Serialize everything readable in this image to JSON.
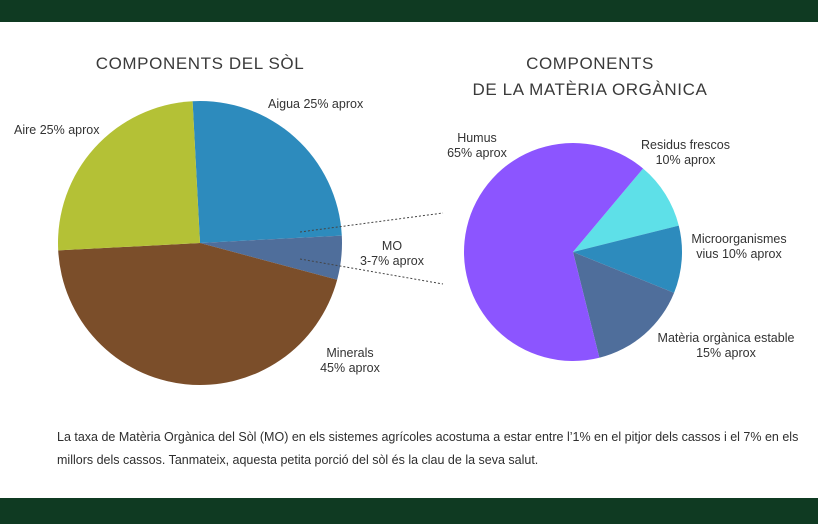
{
  "chart_data": [
    {
      "type": "pie",
      "title": "COMPONENTS DEL SÒL",
      "slices": [
        {
          "name": "Aigua",
          "label": "Aigua 25% aprox",
          "value": 25,
          "color": "#2d8bbd"
        },
        {
          "name": "MO",
          "label": "MO\n3-7% aprox",
          "value": 5,
          "color": "#4f6e9b"
        },
        {
          "name": "Minerals",
          "label": "Minerals\n45% aprox",
          "value": 45,
          "color": "#7b4e2a"
        },
        {
          "name": "Aire",
          "label": "Aire 25% aprox",
          "value": 25,
          "color": "#b4c136"
        }
      ]
    },
    {
      "type": "pie",
      "title": "COMPONENTS\nDE LA MATÈRIA ORGÀNICA",
      "slices": [
        {
          "name": "Residus frescos",
          "label": "Residus frescos\n10% aprox",
          "value": 10,
          "color": "#5ee0e8"
        },
        {
          "name": "Microorganismes vius",
          "label": "Microorganismes\nvius 10% aprox",
          "value": 10,
          "color": "#2d8bbd"
        },
        {
          "name": "Matèria orgànica estable",
          "label": "Matèria orgànica estable\n15% aprox",
          "value": 15,
          "color": "#4f6e9b"
        },
        {
          "name": "Humus",
          "label": "Humus\n65% aprox",
          "value": 65,
          "color": "#8c55ff"
        }
      ]
    }
  ],
  "caption": "La taxa de Matèria Orgànica del Sòl (MO) en els sistemes agrícoles acostuma a estar entre l’1% en el pitjor dels cassos i el 7% en els millors dels cassos. Tanmateix, aquesta petita porció del sòl és la clau de la seva salut.",
  "colors": {
    "band": "#0f3a22",
    "connector": "#444444"
  }
}
